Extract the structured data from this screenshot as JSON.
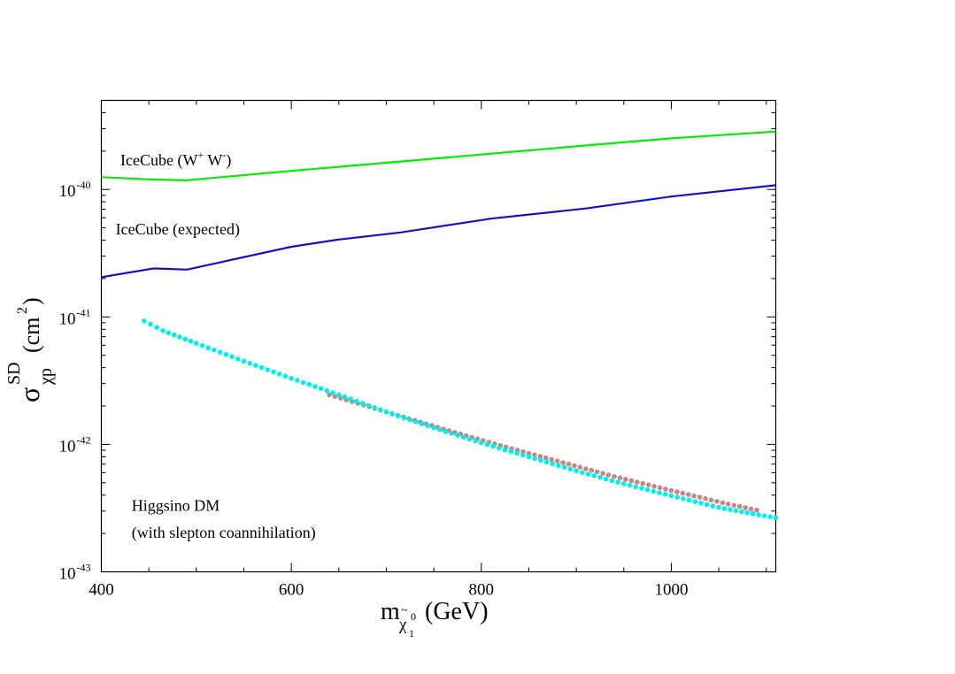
{
  "chart_data": {
    "type": "line",
    "title": "",
    "xlabel": {
      "main": "m",
      "sub_accent": "~",
      "sub": "χ",
      "sub_sub": "1",
      "sub_sup": "0",
      "unit": "(GeV)"
    },
    "ylabel": {
      "main": "σ",
      "sup": "SD",
      "sub": "χp",
      "unit_open": "(cm",
      "unit_sup": "2",
      "unit_close": ")"
    },
    "x_scale": "linear",
    "y_scale": "log",
    "xlim": [
      400,
      1110
    ],
    "ylim": [
      1e-43,
      5e-40
    ],
    "x_ticks": [
      {
        "value": 400,
        "label": "400"
      },
      {
        "value": 600,
        "label": "600"
      },
      {
        "value": 800,
        "label": "800"
      },
      {
        "value": 1000,
        "label": "1000"
      }
    ],
    "y_ticks": [
      {
        "exp": -40,
        "base": "10",
        "sup": "-40"
      },
      {
        "exp": -41,
        "base": "10",
        "sup": "-41"
      },
      {
        "exp": -42,
        "base": "10",
        "sup": "-42"
      },
      {
        "exp": -43,
        "base": "10",
        "sup": "-43"
      }
    ],
    "series": [
      {
        "name": "IceCube (W+ W-)",
        "kind": "line",
        "color": "#00ee00",
        "x": [
          400,
          450,
          490,
          500,
          600,
          700,
          800,
          900,
          1000,
          1110
        ],
        "y": [
          1.25e-40,
          1.2e-40,
          1.18e-40,
          1.2e-40,
          1.4e-40,
          1.62e-40,
          1.88e-40,
          2.18e-40,
          2.52e-40,
          2.85e-40
        ]
      },
      {
        "name": "IceCube (expected)",
        "kind": "line",
        "color": "#1111cc",
        "x": [
          400,
          455,
          470,
          490,
          600,
          650,
          715,
          810,
          910,
          1000,
          1110
        ],
        "y": [
          2.05e-41,
          2.4e-41,
          2.38e-41,
          2.35e-41,
          3.55e-41,
          4.05e-41,
          4.6e-41,
          5.9e-41,
          7.1e-41,
          8.8e-41,
          1.08e-40
        ]
      },
      {
        "name": "Higgsino DM (brown)",
        "kind": "scatter",
        "color": "#c08a88",
        "x": [
          640,
          700,
          760,
          820,
          880,
          940,
          1000,
          1060,
          1090
        ],
        "y": [
          2.45e-42,
          1.8e-42,
          1.32e-42,
          9.8e-43,
          7.4e-43,
          5.6e-43,
          4.35e-43,
          3.4e-43,
          3.05e-43
        ]
      },
      {
        "name": "Higgsino DM (cyan)",
        "kind": "scatter",
        "color": "#00eeee",
        "x": [
          445,
          465,
          500,
          550,
          600,
          650,
          700,
          750,
          800,
          850,
          900,
          950,
          1000,
          1050,
          1110
        ],
        "y": [
          9.3e-42,
          7.8e-42,
          6.2e-42,
          4.5e-42,
          3.3e-42,
          2.45e-42,
          1.8e-42,
          1.35e-42,
          1.03e-42,
          8e-43,
          6.2e-43,
          4.9e-43,
          3.95e-43,
          3.2e-43,
          2.65e-43
        ]
      }
    ],
    "annotations": [
      {
        "text": "IceCube (W",
        "sup": "+",
        "text2": " W",
        "sup2": "-",
        "text3": ")",
        "x": 420,
        "y": 1.55e-40
      },
      {
        "text": "IceCube (expected)",
        "x": 415,
        "y": 4.45e-41
      },
      {
        "text": "Higgsino DM",
        "x": 432,
        "y": 3e-43
      },
      {
        "text": "(with slepton coannihilation)",
        "x": 432,
        "y": 1.85e-43
      }
    ],
    "grid": false,
    "legend": "none"
  }
}
